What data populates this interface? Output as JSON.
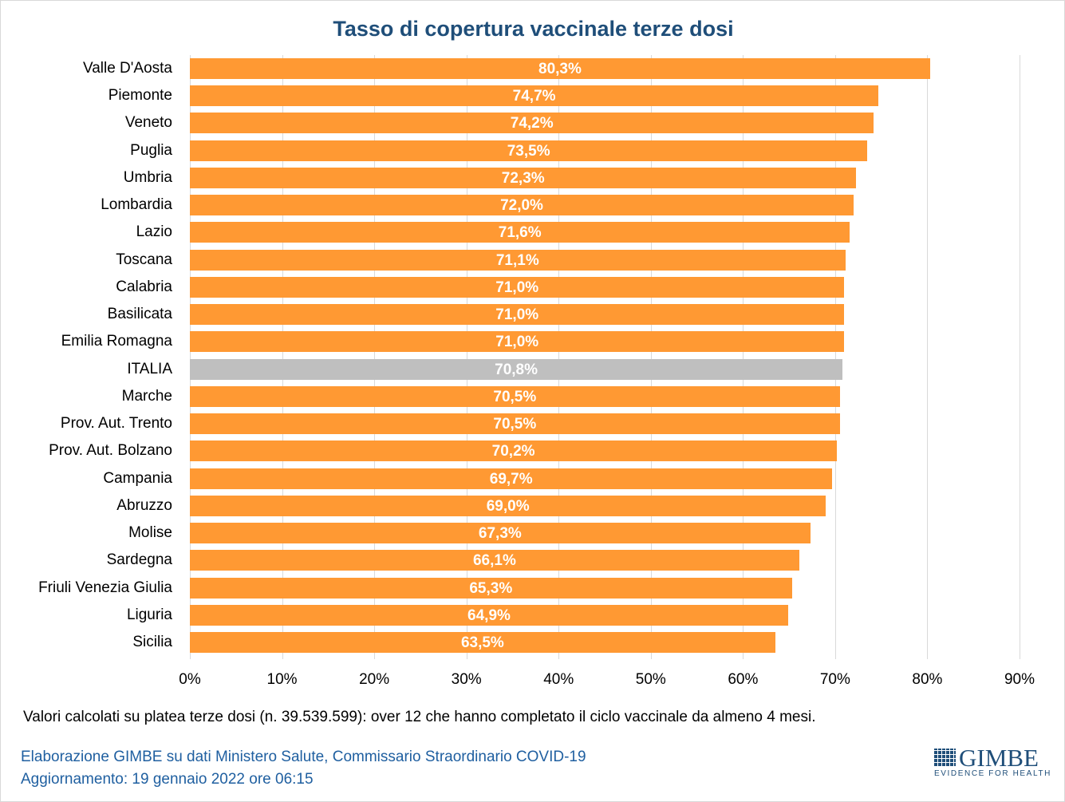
{
  "chart_data": {
    "type": "bar",
    "orientation": "horizontal",
    "title": "Tasso di copertura vaccinale terze dosi",
    "categories": [
      "Valle D'Aosta",
      "Piemonte",
      "Veneto",
      "Puglia",
      "Umbria",
      "Lombardia",
      "Lazio",
      "Toscana",
      "Calabria",
      "Basilicata",
      "Emilia Romagna",
      "ITALIA",
      "Marche",
      "Prov. Aut. Trento",
      "Prov. Aut. Bolzano",
      "Campania",
      "Abruzzo",
      "Molise",
      "Sardegna",
      "Friuli Venezia Giulia",
      "Liguria",
      "Sicilia"
    ],
    "values": [
      80.3,
      74.7,
      74.2,
      73.5,
      72.3,
      72.0,
      71.6,
      71.1,
      71.0,
      71.0,
      71.0,
      70.8,
      70.5,
      70.5,
      70.2,
      69.7,
      69.0,
      67.3,
      66.1,
      65.3,
      64.9,
      63.5
    ],
    "data_labels": [
      "80,3%",
      "74,7%",
      "74,2%",
      "73,5%",
      "72,3%",
      "72,0%",
      "71,6%",
      "71,1%",
      "71,0%",
      "71,0%",
      "71,0%",
      "70,8%",
      "70,5%",
      "70,5%",
      "70,2%",
      "69,7%",
      "69,0%",
      "67,3%",
      "66,1%",
      "65,3%",
      "64,9%",
      "63,5%"
    ],
    "highlight_category": "ITALIA",
    "xlim": [
      0,
      90
    ],
    "x_ticks": [
      0,
      10,
      20,
      30,
      40,
      50,
      60,
      70,
      80,
      90
    ],
    "x_tick_labels": [
      "0%",
      "10%",
      "20%",
      "30%",
      "40%",
      "50%",
      "60%",
      "70%",
      "80%",
      "90%"
    ],
    "xlabel": "",
    "ylabel": "",
    "grid": "vertical",
    "colors": {
      "bar": "#ff9933",
      "highlight": "#bfbfbf",
      "title": "#1f4e79"
    }
  },
  "footer": {
    "note": "Valori calcolati su platea terze dosi (n. 39.539.599): over 12 che hanno completato il ciclo vaccinale da almeno 4 mesi.",
    "source": "Elaborazione GIMBE su dati Ministero Salute, Commissario Straordinario COVID-19",
    "updated": "Aggiornamento: 19 gennaio 2022 ore 06:15"
  },
  "logo": {
    "name": "GIMBE",
    "tagline": "EVIDENCE FOR HEALTH"
  }
}
